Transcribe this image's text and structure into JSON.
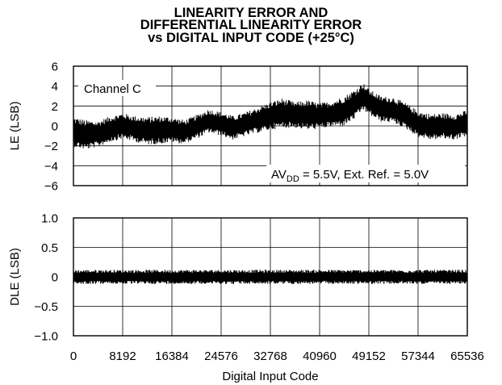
{
  "chart_data": {
    "title_lines": [
      "LINEARITY ERROR AND",
      "DIFFERENTIAL LINEARITY ERROR",
      "vs DIGITAL INPUT CODE (+25°C)"
    ],
    "xlabel": "Digital Input Code",
    "x_ticks": [
      "0",
      "8192",
      "16384",
      "24576",
      "32768",
      "40960",
      "49152",
      "57344",
      "65536"
    ],
    "xlim": [
      0,
      65536
    ],
    "grid": true,
    "panels": [
      {
        "type": "line",
        "ylabel": "LE (LSB)",
        "ylim": [
          -6,
          6
        ],
        "y_ticks": [
          "6",
          "4",
          "2",
          "0",
          "−2",
          "−4",
          "−6"
        ],
        "annotation_channel": "Channel C",
        "annotation_condition": {
          "prefix": "AV",
          "subscript": "DD",
          "rest": " = 5.5V, Ext. Ref. = 5.0V"
        },
        "series": [
          {
            "x": [
              0,
              2048,
              4096,
              6144,
              8192,
              10240,
              12288,
              14336,
              16384,
              18432,
              20480,
              22528,
              24576,
              26624,
              28672,
              30720,
              32768,
              34816,
              36864,
              38912,
              40960,
              43008,
              45056,
              47104,
              48128,
              49152,
              51200,
              53248,
              55296,
              57344,
              59392,
              61440,
              63488,
              65536
            ],
            "center": [
              -0.6,
              -0.9,
              -0.8,
              -0.3,
              0.0,
              -0.3,
              -0.5,
              -0.4,
              -0.4,
              -0.6,
              -0.1,
              0.5,
              0.2,
              -0.2,
              0.2,
              0.6,
              1.0,
              1.3,
              1.1,
              1.1,
              1.0,
              1.2,
              1.5,
              2.3,
              3.0,
              2.4,
              1.7,
              1.6,
              1.0,
              0.2,
              -0.1,
              0.0,
              -0.1,
              0.3
            ],
            "band_half_width": [
              1.5,
              1.5,
              1.3,
              1.3,
              1.3,
              1.3,
              1.4,
              1.4,
              1.3,
              1.2,
              1.2,
              1.2,
              1.2,
              1.2,
              1.2,
              1.3,
              1.4,
              1.5,
              1.3,
              1.5,
              1.3,
              1.3,
              1.5,
              1.5,
              1.4,
              1.3,
              1.3,
              1.3,
              1.3,
              1.3,
              1.3,
              1.3,
              1.3,
              1.3
            ]
          }
        ]
      },
      {
        "type": "line",
        "ylabel": "DLE (LSB)",
        "ylim": [
          -1.0,
          1.0
        ],
        "y_ticks": [
          "1.0",
          "0.5",
          "0",
          "−0.5",
          "−1.0"
        ],
        "series": [
          {
            "x": [
              0,
              65536
            ],
            "center": [
              0.0,
              0.0
            ],
            "band_half_width": [
              0.12,
              0.12
            ]
          }
        ]
      }
    ]
  }
}
